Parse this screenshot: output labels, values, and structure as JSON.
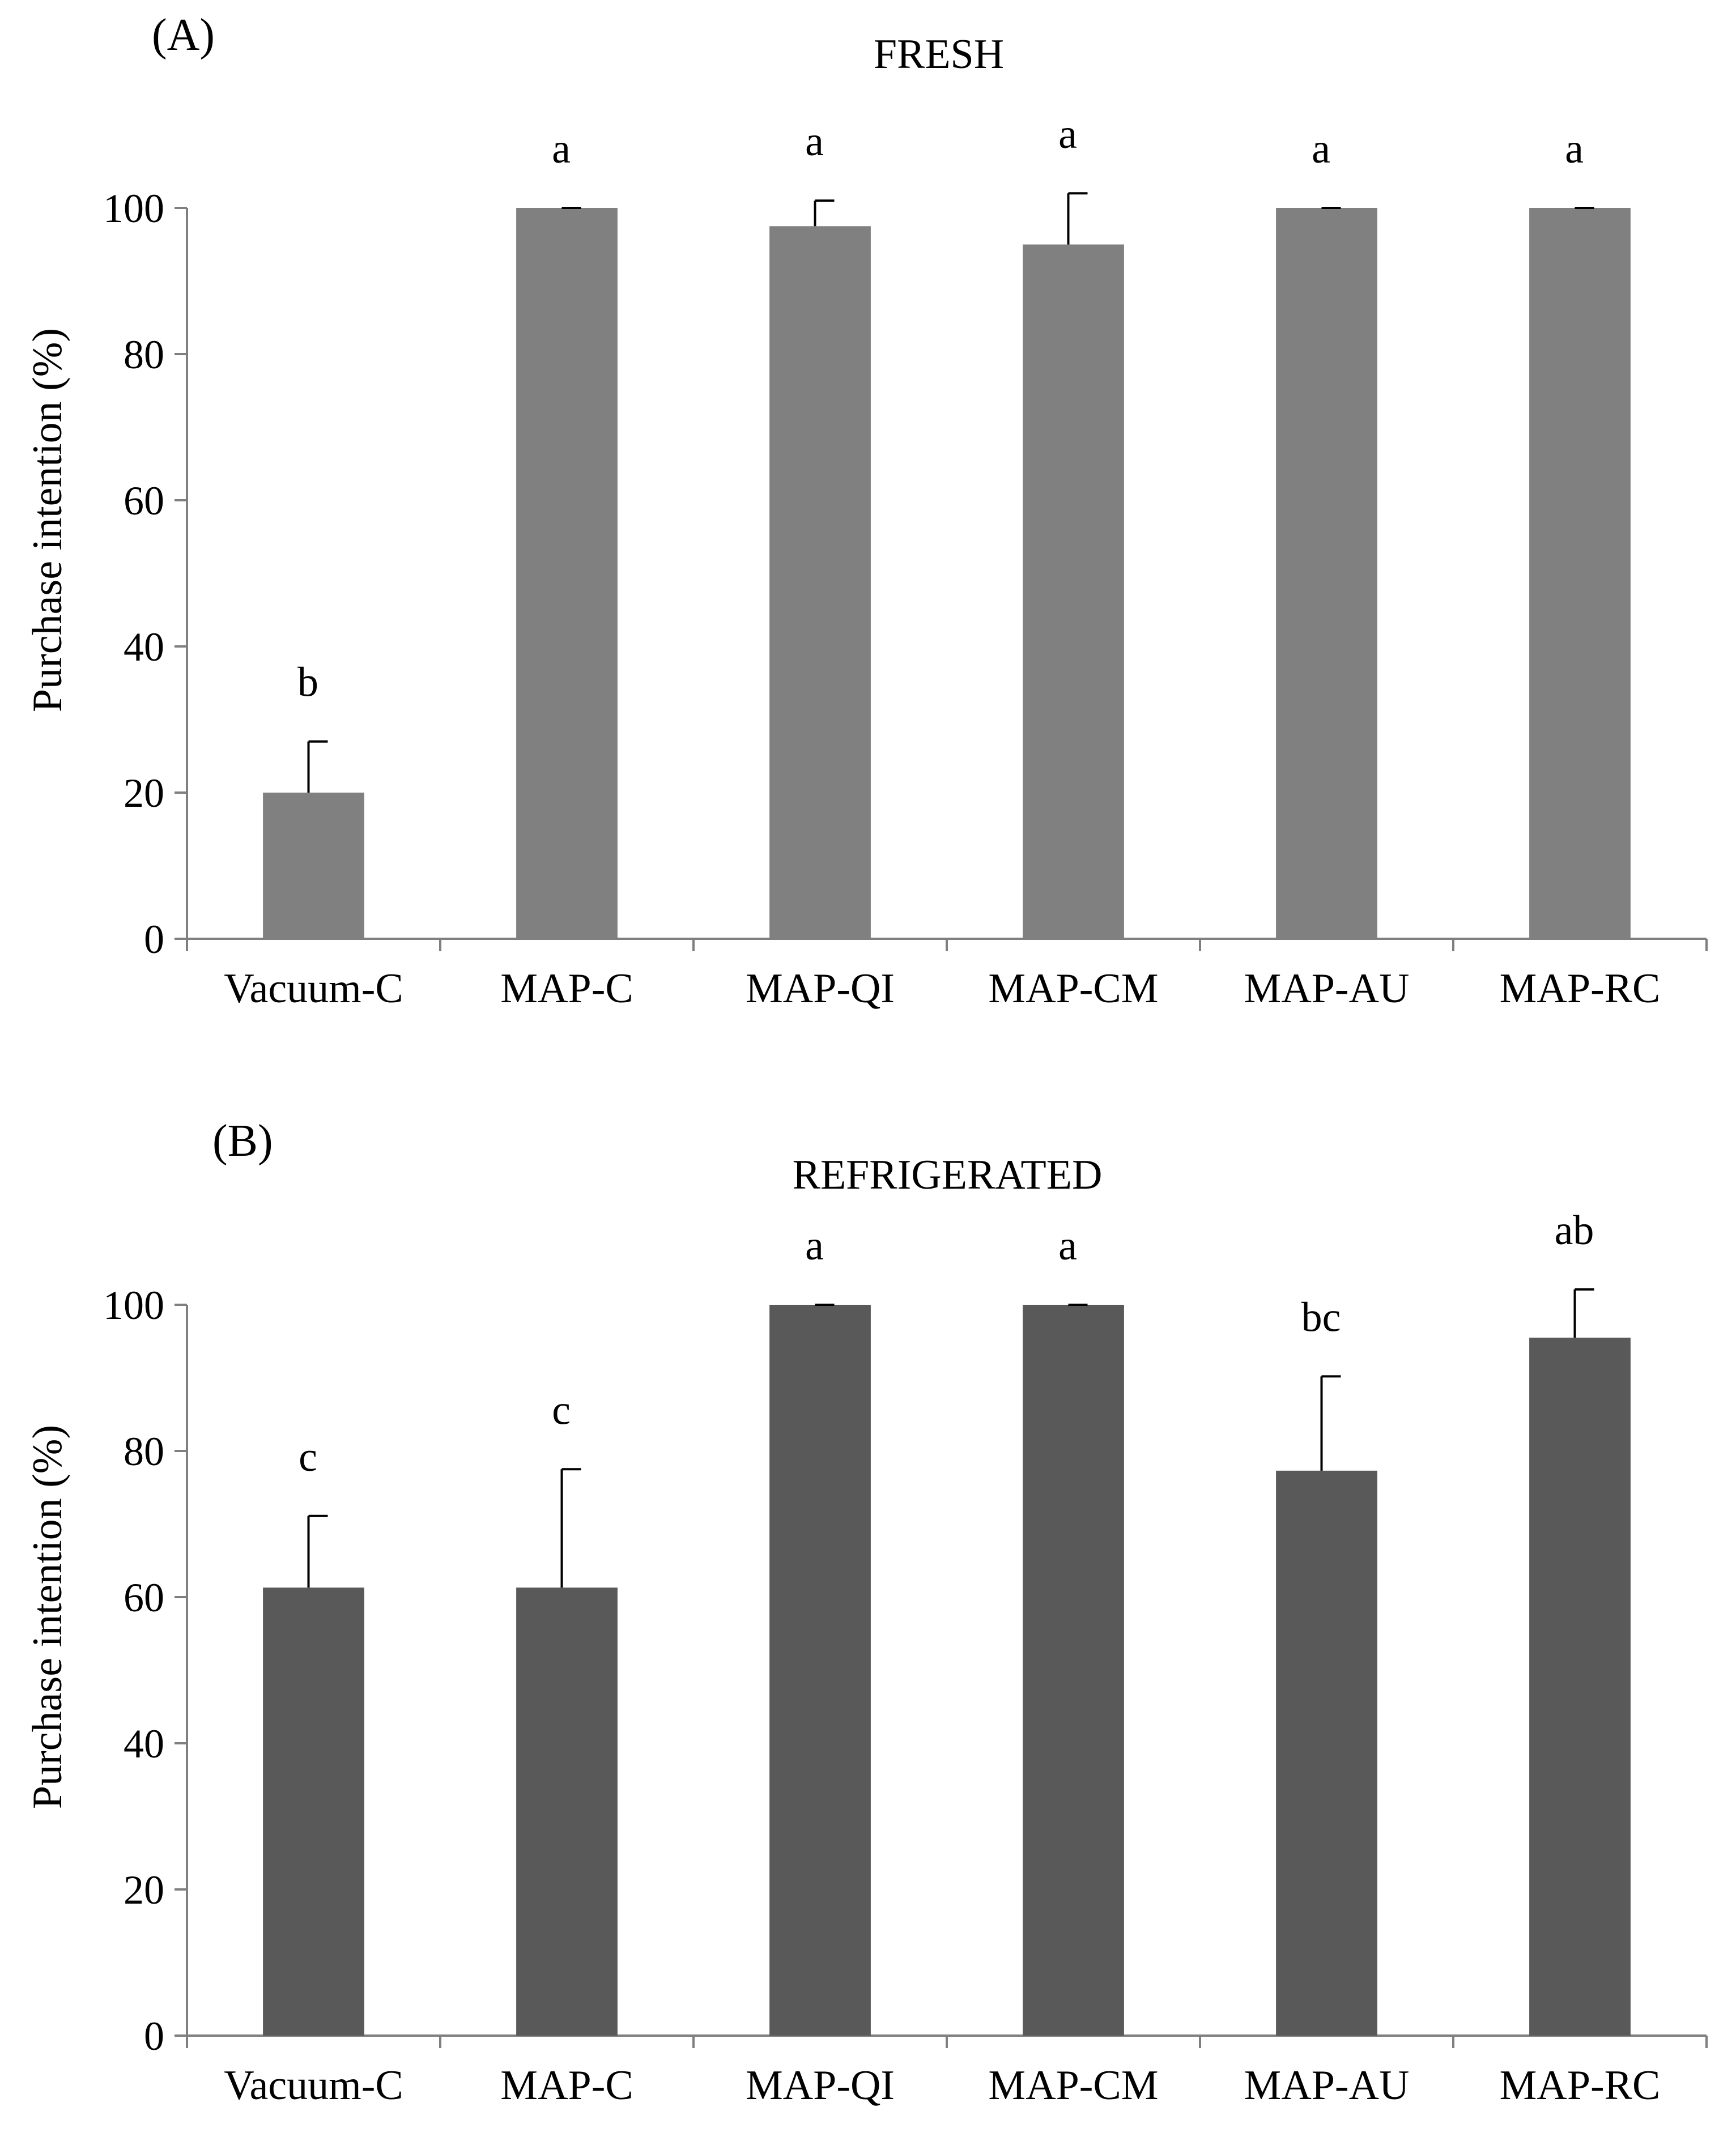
{
  "chart_data": [
    {
      "type": "bar",
      "panel_label": "(A)",
      "title": "FRESH",
      "ylabel": "Purchase intention (%)",
      "xlabel": "",
      "ylim": [
        0,
        100
      ],
      "yticks": [
        "0",
        "20",
        "40",
        "60",
        "80",
        "100"
      ],
      "categories": [
        "Vacuum-C",
        "MAP-C",
        "MAP-QI",
        "MAP-CM",
        "MAP-AU",
        "MAP-RC"
      ],
      "values": [
        20,
        100,
        97.5,
        95,
        100,
        100
      ],
      "error_upper": [
        7,
        0,
        3.5,
        7,
        0,
        0
      ],
      "significance": [
        "b",
        "a",
        "a",
        "a",
        "a",
        "a"
      ],
      "bar_color": "#808080",
      "grid": false,
      "legend": "none"
    },
    {
      "type": "bar",
      "panel_label": "(B)",
      "title": "REFRIGERATED",
      "ylabel": "Purchase intention (%)",
      "xlabel": "",
      "ylim": [
        0,
        100
      ],
      "yticks": [
        "0",
        "20",
        "40",
        "60",
        "80",
        "100"
      ],
      "categories": [
        "Vacuum-C",
        "MAP-C",
        "MAP-QI",
        "MAP-CM",
        "MAP-AU",
        "MAP-RC"
      ],
      "values": [
        61.3,
        61.3,
        100,
        100,
        77.3,
        95.5
      ],
      "error_upper": [
        9.8,
        16.2,
        0,
        0,
        12.9,
        6.6
      ],
      "significance": [
        "c",
        "c",
        "a",
        "a",
        "bc",
        "ab"
      ],
      "bar_color": "#595959",
      "grid": false,
      "legend": "none"
    }
  ]
}
